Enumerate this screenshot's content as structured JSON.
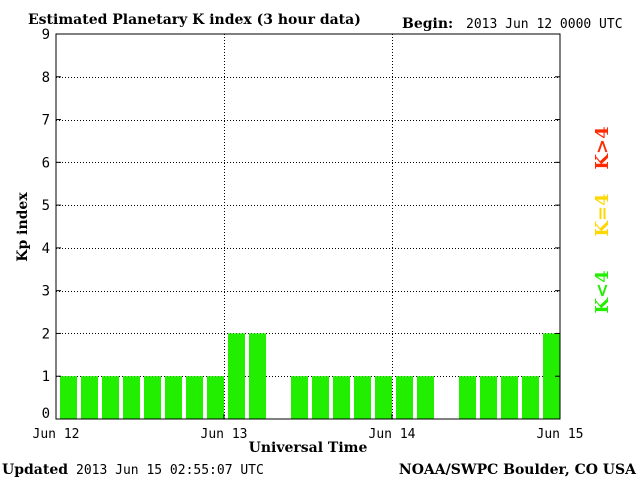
{
  "header": {
    "title": "Estimated Planetary K index (3 hour data)",
    "begin_label": "Begin:",
    "begin_value": "2013 Jun 12 0000 UTC"
  },
  "footer": {
    "updated_label": "Updated",
    "updated_value": "2013 Jun 15 02:55:07 UTC",
    "source": "NOAA/SWPC Boulder, CO USA"
  },
  "legend": {
    "high": {
      "text": "K>4",
      "color": "#ff2a00"
    },
    "equal": {
      "text": "K=4",
      "color": "#ffd700"
    },
    "low": {
      "text": "K<4",
      "color": "#22ee00"
    }
  },
  "chart_data": {
    "type": "bar",
    "title": "Estimated Planetary K index (3 hour data)",
    "xlabel": "Universal Time",
    "ylabel": "Kp index",
    "ylim": [
      0,
      9
    ],
    "yticks": [
      0,
      1,
      2,
      3,
      4,
      5,
      6,
      7,
      8,
      9
    ],
    "xticks": [
      "Jun 12",
      "Jun 13",
      "Jun 14",
      "Jun 15"
    ],
    "slots_per_day": 8,
    "days": 3,
    "values": [
      1,
      1,
      1,
      1,
      1,
      1,
      1,
      1,
      2,
      2,
      null,
      1,
      1,
      1,
      1,
      1,
      1,
      1,
      null,
      1,
      1,
      1,
      1,
      2
    ],
    "bar_color": "#22ee00",
    "grid": true
  }
}
